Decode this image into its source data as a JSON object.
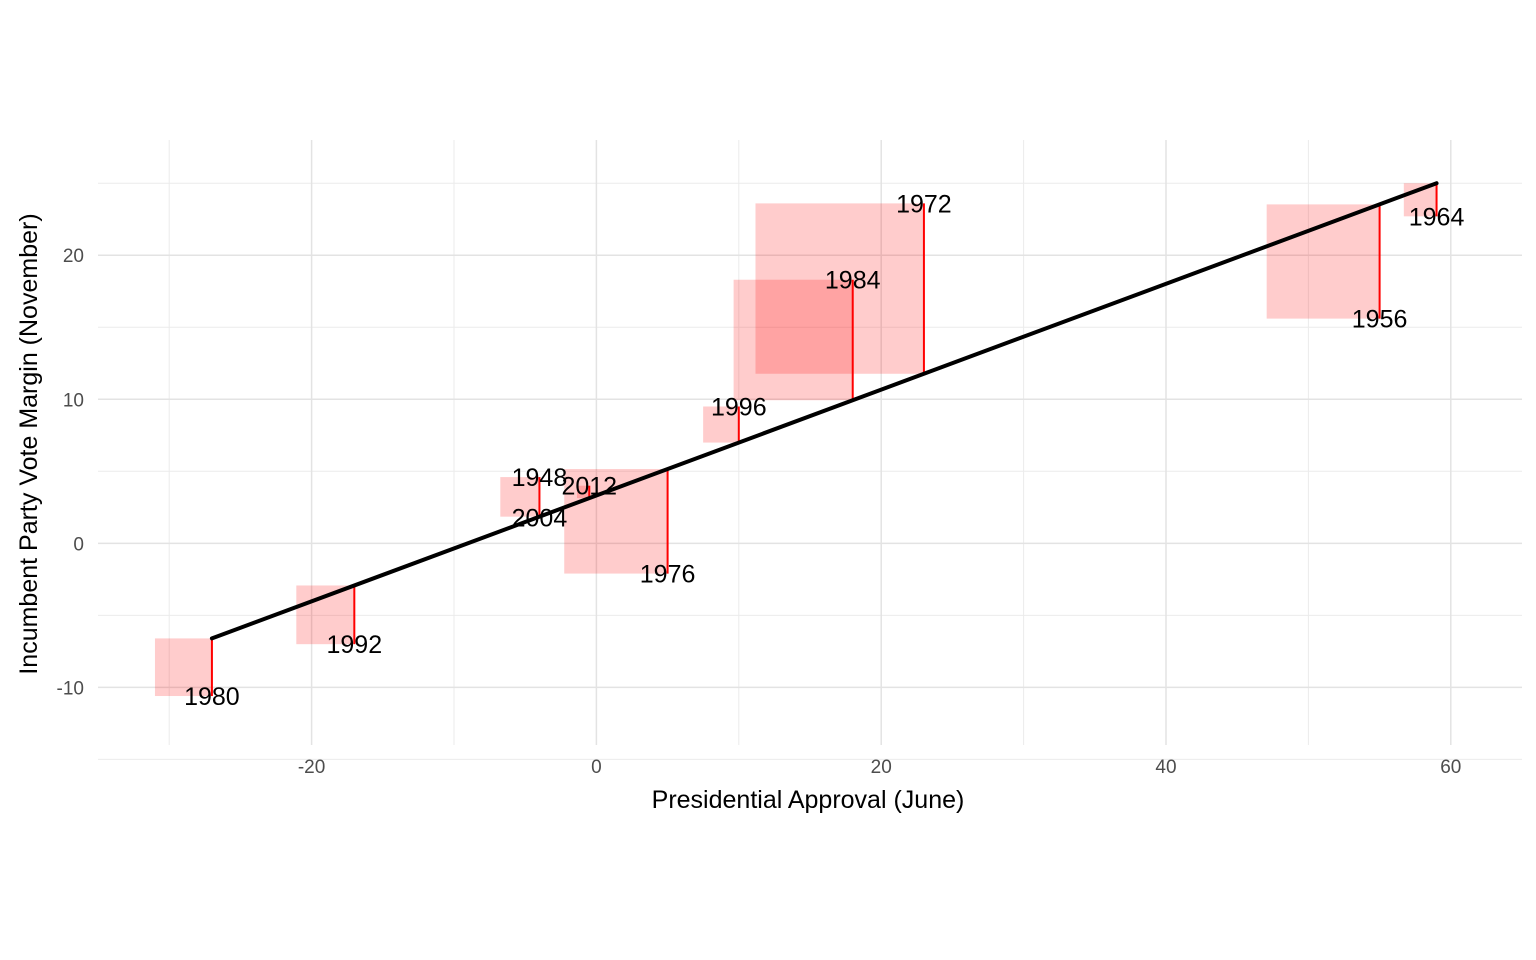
{
  "chart_data": {
    "type": "scatter",
    "title": "",
    "xlabel": "Presidential Approval (June)",
    "ylabel": "Incumbent Party Vote Margin (November)",
    "xlim": [
      -35,
      65
    ],
    "ylim": [
      -14,
      28
    ],
    "x_ticks": [
      -20,
      0,
      20,
      40,
      60
    ],
    "y_ticks": [
      -10,
      0,
      10,
      20
    ],
    "x_tick_labels": [
      "-20",
      "0",
      "20",
      "40",
      "60"
    ],
    "y_tick_labels": [
      "-10",
      "0",
      "10",
      "20"
    ],
    "grid": true,
    "fit_line": {
      "x_start": -27,
      "x_end": 59,
      "y_start": -6.6,
      "y_end": 25.0,
      "color": "#000000"
    },
    "residual_color": "#ff0000",
    "square_color": "#ff0000",
    "points": [
      {
        "year": "1980",
        "x": -27.0,
        "y": -10.6
      },
      {
        "year": "1992",
        "x": -17.0,
        "y": -7.0
      },
      {
        "year": "1948",
        "x": -4.0,
        "y": 4.6
      },
      {
        "year": "2004",
        "x": -4.0,
        "y": 1.8
      },
      {
        "year": "2012",
        "x": -0.5,
        "y": 4.0
      },
      {
        "year": "1976",
        "x": 5.0,
        "y": -2.1
      },
      {
        "year": "1996",
        "x": 10.0,
        "y": 9.5
      },
      {
        "year": "1984",
        "x": 18.0,
        "y": 18.3
      },
      {
        "year": "1972",
        "x": 23.0,
        "y": 23.6
      },
      {
        "year": "1956",
        "x": 55.0,
        "y": 15.6
      },
      {
        "year": "1964",
        "x": 59.0,
        "y": 22.7
      }
    ]
  }
}
